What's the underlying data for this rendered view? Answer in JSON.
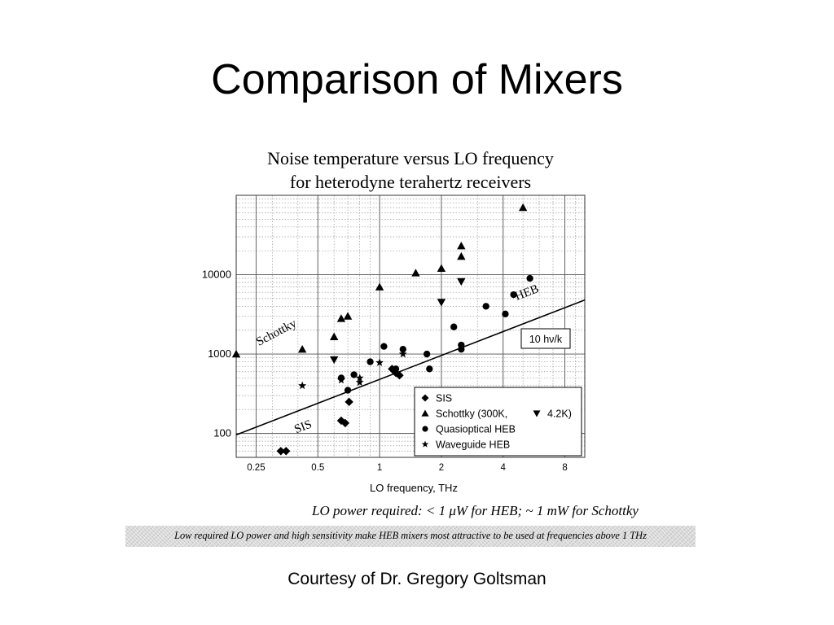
{
  "slide": {
    "title": "Comparison of Mixers",
    "lo_power_note": "LO power required:  < 1 μW for HEB; ~ 1 mW for Schottky",
    "caption": "Low required LO power and high sensitivity make HEB mixers most attractive to be used at frequencies above 1 THz",
    "courtesy": "Courtesy of Dr. Gregory Goltsman"
  },
  "chart_data": {
    "type": "scatter",
    "title_lines": [
      "Noise temperature versus LO frequency",
      "for heterodyne terahertz receivers"
    ],
    "xlabel": "LO frequency, THz",
    "ylabel": "",
    "x_scale": "log",
    "y_scale": "log",
    "xlim": [
      0.2,
      10
    ],
    "ylim": [
      50,
      100000
    ],
    "x_ticks": [
      0.25,
      0.5,
      1,
      2,
      4,
      8
    ],
    "x_tick_labels": [
      "0.25",
      "0.5",
      "1",
      "2",
      "4",
      "8"
    ],
    "y_ticks": [
      100,
      1000,
      10000
    ],
    "y_tick_labels": [
      "100",
      "1000",
      "10000"
    ],
    "grid": true,
    "legend_position": "lower-right",
    "legend_items": [
      {
        "marker": "diamond",
        "label": "SIS"
      },
      {
        "marker": "triangle-up",
        "label": "Schottky (300K,",
        "extra_marker": "triangle-down",
        "extra_label": "4.2K)"
      },
      {
        "marker": "circle",
        "label": "Quasioptical HEB"
      },
      {
        "marker": "star",
        "label": "Waveguide HEB"
      }
    ],
    "series": [
      {
        "name": "SIS",
        "marker": "diamond",
        "points": [
          [
            0.33,
            60
          ],
          [
            0.35,
            60
          ],
          [
            0.65,
            145
          ],
          [
            0.68,
            135
          ],
          [
            0.71,
            250
          ],
          [
            1.15,
            650
          ],
          [
            1.2,
            580
          ],
          [
            1.25,
            540
          ]
        ]
      },
      {
        "name": "Schottky (300K,",
        "marker": "triangle-up",
        "points": [
          [
            0.2,
            1000
          ],
          [
            0.42,
            1150
          ],
          [
            0.6,
            1650
          ],
          [
            0.65,
            2800
          ],
          [
            0.7,
            3000
          ],
          [
            1.0,
            7000
          ],
          [
            1.5,
            10500
          ],
          [
            2.0,
            12000
          ],
          [
            2.5,
            23000
          ],
          [
            2.5,
            17000
          ],
          [
            5.0,
            70000
          ]
        ]
      },
      {
        "name": "4.2K)",
        "marker": "triangle-down",
        "points": [
          [
            0.6,
            850
          ],
          [
            2.0,
            4500
          ],
          [
            2.5,
            8200
          ]
        ]
      },
      {
        "name": "Quasioptical HEB",
        "marker": "circle",
        "points": [
          [
            0.65,
            500
          ],
          [
            0.7,
            350
          ],
          [
            0.75,
            550
          ],
          [
            0.9,
            800
          ],
          [
            1.05,
            1250
          ],
          [
            1.2,
            650
          ],
          [
            1.3,
            1150
          ],
          [
            1.7,
            1000
          ],
          [
            1.75,
            650
          ],
          [
            2.3,
            2200
          ],
          [
            2.5,
            1300
          ],
          [
            2.5,
            1150
          ],
          [
            3.3,
            4000
          ],
          [
            4.1,
            3200
          ],
          [
            4.5,
            5600
          ],
          [
            5.4,
            9000
          ]
        ]
      },
      {
        "name": "Waveguide HEB",
        "marker": "star",
        "points": [
          [
            0.42,
            400
          ],
          [
            0.65,
            470
          ],
          [
            0.8,
            500
          ],
          [
            0.8,
            440
          ],
          [
            1.0,
            780
          ],
          [
            1.3,
            1000
          ]
        ]
      }
    ],
    "reference_line": {
      "label": "10 hν/k",
      "points": [
        [
          0.2,
          96
        ],
        [
          10,
          4800
        ]
      ]
    },
    "annotations": [
      {
        "text": "HEB",
        "at": [
          5.3,
          5400
        ]
      },
      {
        "text": "Schottky",
        "at": [
          0.32,
          1700
        ]
      },
      {
        "text": "SIS",
        "at": [
          0.43,
          110
        ]
      }
    ]
  }
}
